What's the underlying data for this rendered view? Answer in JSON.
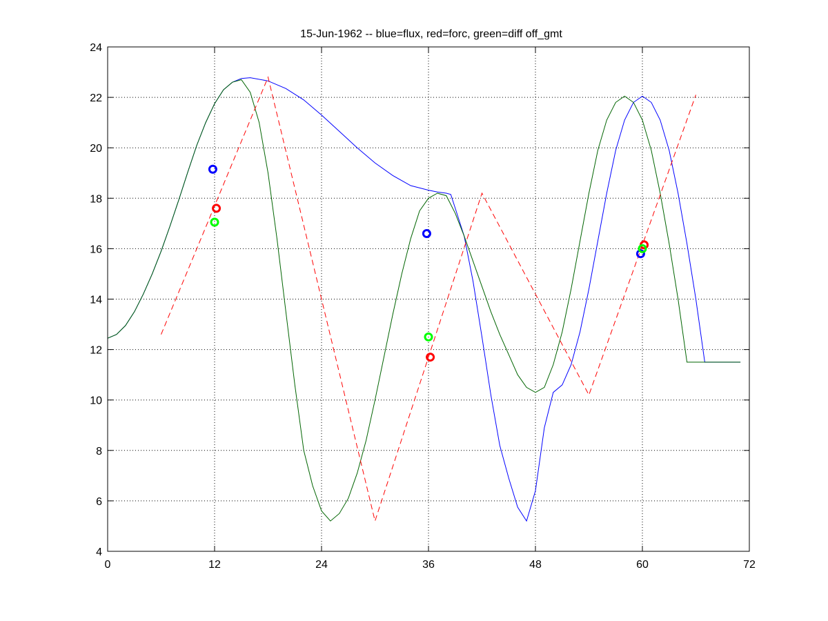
{
  "chart_data": {
    "type": "line",
    "title": "15-Jun-1962 -- blue=flux, red=forc, green=diff off_gmt",
    "xlabel": "",
    "ylabel": "",
    "xlim": [
      0,
      72
    ],
    "ylim": [
      4,
      24
    ],
    "xticks": [
      0,
      12,
      24,
      36,
      48,
      60,
      72
    ],
    "yticks": [
      4,
      6,
      8,
      10,
      12,
      14,
      16,
      18,
      20,
      22,
      24
    ],
    "grid": true,
    "series": [
      {
        "color": "#0000ff",
        "style": "solid",
        "x": [
          0,
          1,
          2,
          3,
          4,
          5,
          6,
          7,
          8,
          9,
          10,
          11,
          12,
          13,
          14,
          15,
          16,
          18,
          20,
          22,
          24,
          26,
          28,
          30,
          32,
          34,
          36,
          37,
          38,
          38.5,
          39,
          40,
          41,
          42,
          43,
          44,
          45,
          46,
          47,
          48,
          49,
          50,
          51,
          52,
          53,
          54,
          55,
          56,
          57,
          58,
          59,
          60,
          61,
          62,
          63,
          64,
          65,
          66,
          67,
          68,
          69,
          70,
          71
        ],
        "y": [
          12.45,
          12.6,
          12.95,
          13.5,
          14.2,
          15.0,
          15.9,
          16.9,
          17.95,
          19.05,
          20.1,
          21.0,
          21.75,
          22.3,
          22.6,
          22.75,
          22.78,
          22.65,
          22.35,
          21.9,
          21.3,
          20.65,
          20.0,
          19.4,
          18.9,
          18.5,
          18.32,
          18.25,
          18.2,
          18.15,
          17.6,
          16.5,
          14.7,
          12.5,
          10.2,
          8.2,
          6.9,
          5.75,
          5.2,
          6.4,
          8.9,
          10.3,
          10.6,
          11.4,
          12.7,
          14.4,
          16.3,
          18.2,
          19.9,
          21.1,
          21.8,
          22.05,
          21.8,
          21.1,
          19.9,
          18.2,
          16.2,
          14.0,
          11.5,
          11.5,
          11.5,
          11.5,
          11.5
        ]
      },
      {
        "color": "#006400",
        "style": "solid",
        "x": [
          0,
          1,
          2,
          3,
          4,
          5,
          6,
          7,
          8,
          9,
          10,
          11,
          12,
          13,
          14,
          15,
          16,
          17,
          18,
          19,
          20,
          21,
          22,
          23,
          24,
          25,
          26,
          27,
          28,
          29,
          30,
          31,
          32,
          33,
          34,
          35,
          36,
          37,
          38,
          39,
          40,
          41,
          42,
          43,
          44,
          45,
          46,
          47,
          48,
          49,
          50,
          51,
          52,
          53,
          54,
          55,
          56,
          57,
          58,
          59,
          60,
          61,
          62,
          63,
          64,
          65,
          66,
          67,
          68,
          69,
          70,
          71
        ],
        "y": [
          12.45,
          12.6,
          12.95,
          13.5,
          14.2,
          15.0,
          15.9,
          16.9,
          17.95,
          19.05,
          20.1,
          21.0,
          21.75,
          22.3,
          22.6,
          22.7,
          22.2,
          21.0,
          19.0,
          16.4,
          13.5,
          10.6,
          8.0,
          6.6,
          5.6,
          5.2,
          5.5,
          6.1,
          7.1,
          8.4,
          10.0,
          11.7,
          13.4,
          15.0,
          16.4,
          17.5,
          18.0,
          18.2,
          18.1,
          17.4,
          16.5,
          15.5,
          14.5,
          13.5,
          12.6,
          11.8,
          11.0,
          10.5,
          10.3,
          10.5,
          11.4,
          12.7,
          14.4,
          16.3,
          18.2,
          19.9,
          21.1,
          21.8,
          22.05,
          21.8,
          21.1,
          19.9,
          18.2,
          16.2,
          14.0,
          11.5,
          11.5,
          11.5,
          11.5,
          11.5,
          11.5,
          11.5
        ]
      },
      {
        "color": "#ff0000",
        "style": "dashed",
        "x": [
          6,
          18,
          30,
          42,
          54,
          66
        ],
        "y": [
          12.6,
          22.8,
          5.2,
          18.2,
          10.2,
          22.1
        ]
      }
    ],
    "markers": [
      {
        "color": "#0000ff",
        "x": 11.8,
        "y": 19.15
      },
      {
        "color": "#ff0000",
        "x": 12.2,
        "y": 17.6
      },
      {
        "color": "#00ff00",
        "x": 12.0,
        "y": 17.05
      },
      {
        "color": "#0000ff",
        "x": 35.8,
        "y": 16.6
      },
      {
        "color": "#00ff00",
        "x": 36.0,
        "y": 12.5
      },
      {
        "color": "#ff0000",
        "x": 36.2,
        "y": 11.7
      },
      {
        "color": "#0000ff",
        "x": 59.8,
        "y": 15.8
      },
      {
        "color": "#ff0000",
        "x": 60.2,
        "y": 16.15
      },
      {
        "color": "#00ff00",
        "x": 60.0,
        "y": 16.0
      }
    ]
  }
}
